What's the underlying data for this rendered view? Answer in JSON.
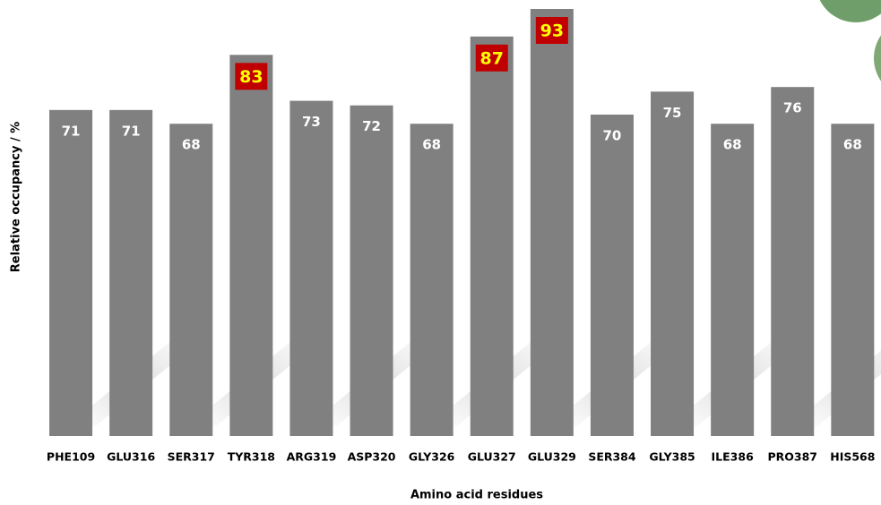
{
  "chart_data": {
    "type": "bar",
    "x_label": "Amino acid residues",
    "y_label": "Relative occupancy / %",
    "categories": [
      "PHE109",
      "GLU316",
      "SER317",
      "TYR318",
      "ARG319",
      "ASP320",
      "GLY326",
      "GLU327",
      "GLU329",
      "SER384",
      "GLY385",
      "ILE386",
      "PRO387",
      "HIS568"
    ],
    "values": [
      71,
      71,
      68,
      83,
      73,
      72,
      68,
      87,
      93,
      70,
      75,
      68,
      76,
      68
    ],
    "color": "#808080",
    "label_color": "#ffffff",
    "highlight": {
      "indices": [
        3,
        7,
        8
      ],
      "background": "#c00000",
      "color": "#ffff00"
    }
  }
}
